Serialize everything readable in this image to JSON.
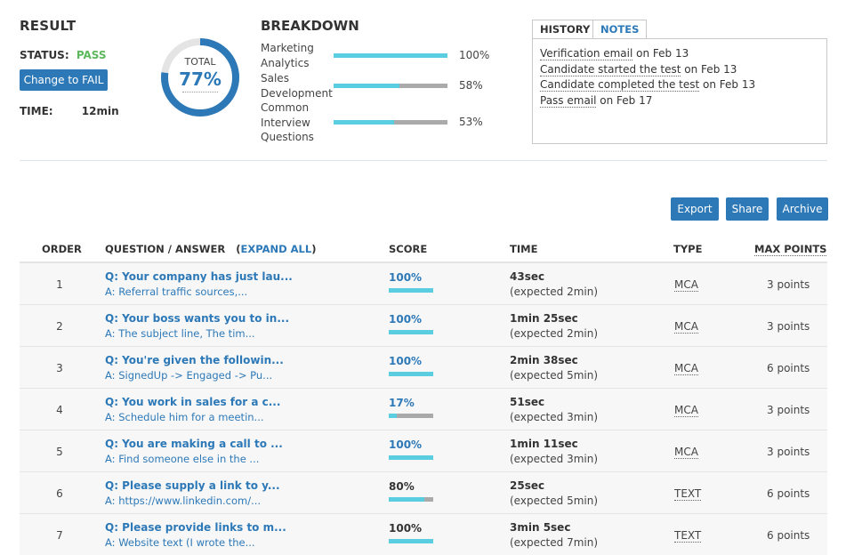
{
  "result": {
    "title": "RESULT",
    "status_label": "STATUS:",
    "status_value": "PASS",
    "change_button": "Change to FAIL",
    "time_label": "TIME:",
    "time_value": "12min",
    "total_label": "TOTAL",
    "total_value": "77%",
    "total_fraction": 0.77
  },
  "colors": {
    "accent": "#2d79b8",
    "pass": "#5cb85c",
    "bar_fill": "#5bcde0",
    "bar_track": "#aaaaaa"
  },
  "breakdown": {
    "title": "BREAKDOWN",
    "items": [
      {
        "label": "Marketing Analytics",
        "pct": "100%",
        "fraction": 1.0
      },
      {
        "label": "Sales Development",
        "pct": "58%",
        "fraction": 0.58
      },
      {
        "label": "Common Interview Questions",
        "pct": "53%",
        "fraction": 0.53
      }
    ]
  },
  "history": {
    "tabs": [
      "HISTORY",
      "NOTES"
    ],
    "items": [
      {
        "link": "Verification email",
        "rest": " on Feb 13"
      },
      {
        "link": "Candidate started the test",
        "rest": " on Feb 13"
      },
      {
        "link": "Candidate completed the test",
        "rest": " on Feb 13"
      },
      {
        "link": "Pass email",
        "rest": " on Feb 17"
      }
    ]
  },
  "actions": {
    "export": "Export",
    "share": "Share",
    "archive": "Archive"
  },
  "table": {
    "headers": {
      "order": "ORDER",
      "question": "QUESTION / ANSWER",
      "expand_open": "(",
      "expand": "EXPAND ALL",
      "expand_close": ")",
      "score": "SCORE",
      "time": "TIME",
      "type": "TYPE",
      "max_points": "MAX POINTS"
    },
    "rows": [
      {
        "order": "1",
        "question": "Q: Your company has just lau...",
        "answer": "A: Referral traffic sources,...",
        "score": "100%",
        "score_fraction": 1.0,
        "score_color": "#2d79b8",
        "time": "43sec",
        "expected": "(expected 2min)",
        "type": "MCA",
        "points": "3 points"
      },
      {
        "order": "2",
        "question": "Q: Your boss wants you to in...",
        "answer": "A: The subject line, The tim...",
        "score": "100%",
        "score_fraction": 1.0,
        "score_color": "#2d79b8",
        "time": "1min 25sec",
        "expected": "(expected 2min)",
        "type": "MCA",
        "points": "3 points"
      },
      {
        "order": "3",
        "question": "Q: You're given the followin...",
        "answer": "A: SignedUp -> Engaged -> Pu...",
        "score": "100%",
        "score_fraction": 1.0,
        "score_color": "#2d79b8",
        "time": "2min 38sec",
        "expected": "(expected 5min)",
        "type": "MCA",
        "points": "6 points"
      },
      {
        "order": "4",
        "question": "Q: You work in sales for a c...",
        "answer": "A: Schedule him for a meetin...",
        "score": "17%",
        "score_fraction": 0.17,
        "score_color": "#2d79b8",
        "time": "51sec",
        "expected": "(expected 3min)",
        "type": "MCA",
        "points": "3 points"
      },
      {
        "order": "5",
        "question": "Q: You are making a call to ...",
        "answer": "A: Find someone else in the ...",
        "score": "100%",
        "score_fraction": 1.0,
        "score_color": "#2d79b8",
        "time": "1min 11sec",
        "expected": "(expected 3min)",
        "type": "MCA",
        "points": "3 points"
      },
      {
        "order": "6",
        "question": "Q: Please supply a link to y...",
        "answer": "A: https://www.linkedin.com/...",
        "score": "80%",
        "score_fraction": 0.8,
        "score_color": "#333333",
        "time": "25sec",
        "expected": "(expected 5min)",
        "type": "TEXT",
        "points": "6 points"
      },
      {
        "order": "7",
        "question": "Q: Please provide links to m...",
        "answer": "A: Website text (I wrote the...",
        "score": "100%",
        "score_fraction": 1.0,
        "score_color": "#333333",
        "time": "3min 5sec",
        "expected": "(expected 7min)",
        "type": "TEXT",
        "points": "6 points"
      }
    ]
  }
}
